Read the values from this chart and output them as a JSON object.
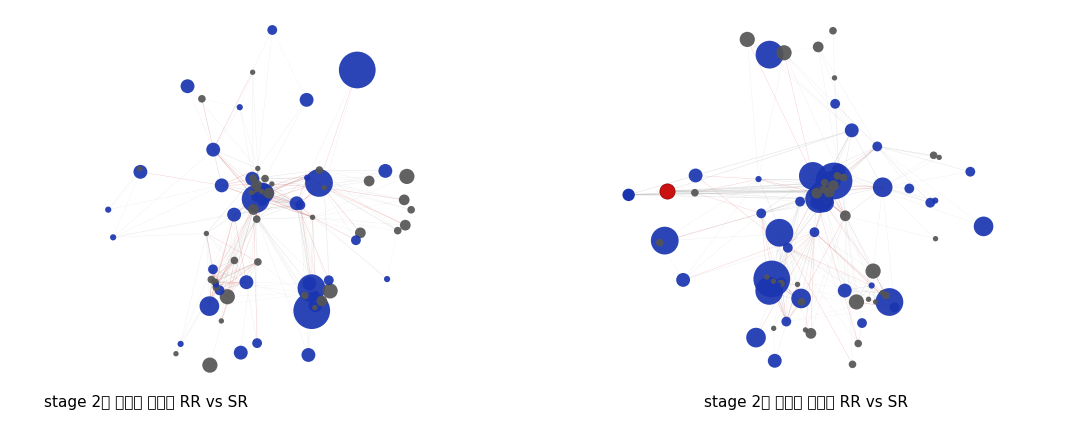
{
  "title_left": "stage 2의 병원균 접종시 RR vs SR",
  "title_right": "stage 2의 증류수 접종시 RR vs SR",
  "background_color": "#ffffff",
  "title_fontsize": 11,
  "seed": 42
}
